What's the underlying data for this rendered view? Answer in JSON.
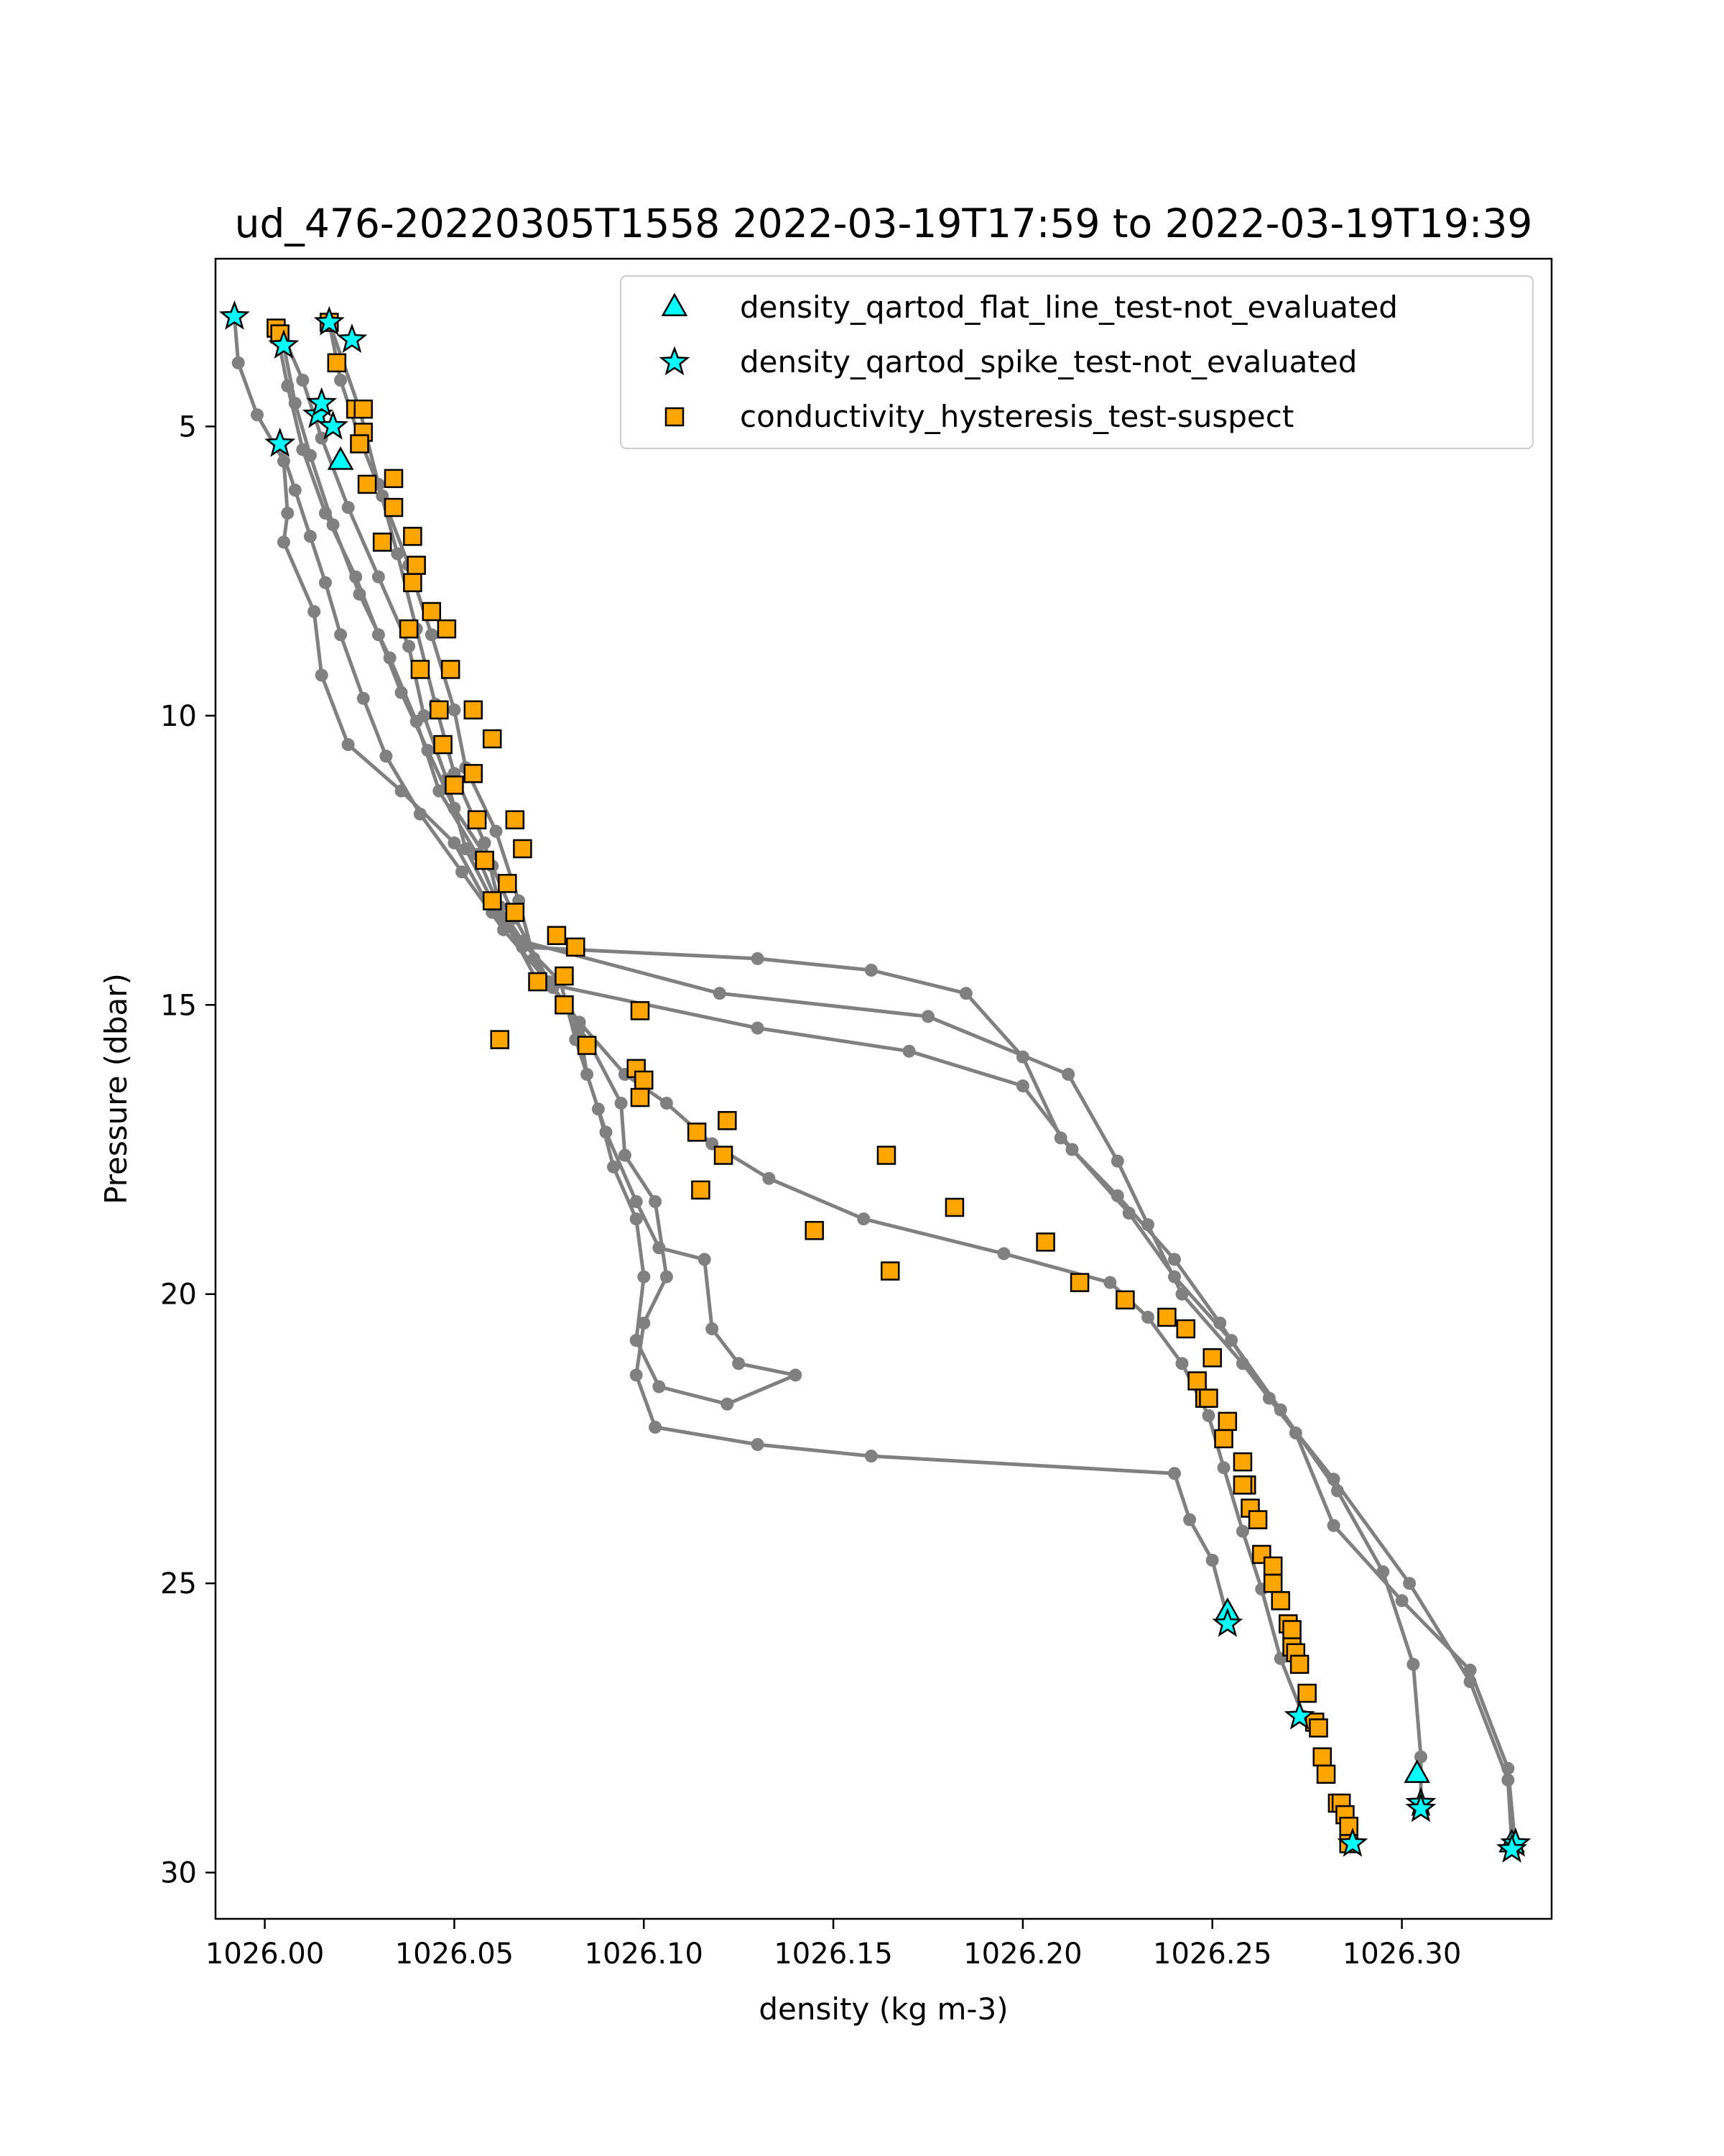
{
  "chart_data": {
    "type": "scatter",
    "title": "ud_476-20220305T1558 2022-03-19T17:59 to 2022-03-19T19:39",
    "xlabel": "density (kg m-3)",
    "ylabel": "Pressure (dbar)",
    "xlim": [
      1025.987,
      1026.3395
    ],
    "ylim": [
      30.8,
      2.1
    ],
    "y_inverted": true,
    "grid": false,
    "legend_position": "top-right",
    "xticks": [
      "1026.00",
      "1026.05",
      "1026.10",
      "1026.15",
      "1026.20",
      "1026.25",
      "1026.30"
    ],
    "xtick_values": [
      1026.0,
      1026.05,
      1026.1,
      1026.15,
      1026.2,
      1026.25,
      1026.3
    ],
    "yticks": [
      "5",
      "10",
      "15",
      "20",
      "25",
      "30"
    ],
    "ytick_values": [
      5,
      10,
      15,
      20,
      25,
      30
    ],
    "profile_line_color": "#808080",
    "series": [
      {
        "type": "line",
        "color": "#808080",
        "points": [
          [
            1026.017,
            3.2
          ],
          [
            1026.025,
            4.7
          ],
          [
            1026.03,
            6.0
          ],
          [
            1026.035,
            7.2
          ],
          [
            1026.04,
            8.5
          ],
          [
            1026.045,
            9.8
          ],
          [
            1026.05,
            11.0
          ],
          [
            1026.058,
            12.2
          ],
          [
            1026.062,
            13.3
          ],
          [
            1026.068,
            13.9
          ],
          [
            1026.12,
            14.8
          ],
          [
            1026.175,
            15.2
          ],
          [
            1026.212,
            16.2
          ],
          [
            1026.225,
            17.7
          ],
          [
            1026.233,
            18.8
          ],
          [
            1026.242,
            20.0
          ],
          [
            1026.258,
            21.2
          ],
          [
            1026.272,
            22.4
          ],
          [
            1026.282,
            24.0
          ],
          [
            1026.3,
            25.3
          ],
          [
            1026.318,
            26.5
          ],
          [
            1026.328,
            28.2
          ],
          [
            1026.33,
            29.6
          ]
        ]
      },
      {
        "type": "line",
        "color": "#808080",
        "points": [
          [
            1026.004,
            3.3
          ],
          [
            1026.01,
            4.2
          ],
          [
            1026.015,
            5.2
          ],
          [
            1026.022,
            6.4
          ],
          [
            1026.03,
            7.6
          ],
          [
            1026.038,
            8.8
          ],
          [
            1026.042,
            10.0
          ],
          [
            1026.048,
            11.1
          ],
          [
            1026.053,
            12.3
          ],
          [
            1026.06,
            13.2
          ],
          [
            1026.068,
            14.0
          ],
          [
            1026.13,
            14.2
          ],
          [
            1026.16,
            14.4
          ],
          [
            1026.185,
            14.8
          ],
          [
            1026.2,
            15.9
          ],
          [
            1026.21,
            17.3
          ],
          [
            1026.225,
            18.3
          ],
          [
            1026.24,
            19.4
          ],
          [
            1026.252,
            20.5
          ],
          [
            1026.265,
            21.8
          ],
          [
            1026.282,
            23.2
          ],
          [
            1026.302,
            25.0
          ],
          [
            1026.318,
            26.7
          ],
          [
            1026.328,
            28.4
          ],
          [
            1026.329,
            29.5
          ]
        ]
      },
      {
        "type": "line",
        "color": "#808080",
        "points": [
          [
            1026.005,
            3.6
          ],
          [
            1026.008,
            4.6
          ],
          [
            1026.012,
            5.5
          ],
          [
            1026.018,
            6.7
          ],
          [
            1026.025,
            7.9
          ],
          [
            1026.033,
            9.0
          ],
          [
            1026.04,
            10.1
          ],
          [
            1026.046,
            11.3
          ],
          [
            1026.056,
            12.4
          ],
          [
            1026.063,
            13.5
          ],
          [
            1026.072,
            14.6
          ],
          [
            1026.13,
            15.4
          ],
          [
            1026.17,
            15.8
          ],
          [
            1026.2,
            16.4
          ],
          [
            1026.213,
            17.5
          ],
          [
            1026.228,
            18.6
          ],
          [
            1026.24,
            19.7
          ],
          [
            1026.255,
            20.8
          ],
          [
            1026.268,
            22.0
          ],
          [
            1026.283,
            23.4
          ],
          [
            1026.295,
            24.8
          ],
          [
            1026.303,
            26.4
          ],
          [
            1026.305,
            28.0
          ],
          [
            1026.305,
            28.9
          ]
        ]
      },
      {
        "type": "line",
        "color": "#808080",
        "points": [
          [
            1025.992,
            3.1
          ],
          [
            1025.993,
            3.9
          ],
          [
            1025.998,
            4.8
          ],
          [
            1026.005,
            5.6
          ],
          [
            1026.006,
            6.5
          ],
          [
            1026.005,
            7.0
          ],
          [
            1026.013,
            8.2
          ],
          [
            1026.015,
            9.3
          ],
          [
            1026.022,
            10.5
          ],
          [
            1026.036,
            11.3
          ],
          [
            1026.05,
            12.2
          ],
          [
            1026.06,
            13.4
          ],
          [
            1026.078,
            14.6
          ],
          [
            1026.082,
            15.6
          ],
          [
            1026.088,
            16.8
          ],
          [
            1026.092,
            17.8
          ],
          [
            1026.098,
            18.7
          ],
          [
            1026.1,
            19.7
          ],
          [
            1026.098,
            20.8
          ],
          [
            1026.104,
            21.6
          ],
          [
            1026.122,
            21.9
          ],
          [
            1026.14,
            21.4
          ],
          [
            1026.125,
            21.2
          ],
          [
            1026.118,
            20.6
          ],
          [
            1026.116,
            19.4
          ],
          [
            1026.104,
            19.2
          ],
          [
            1026.098,
            18.4
          ],
          [
            1026.09,
            17.2
          ],
          [
            1026.085,
            16.2
          ],
          [
            1026.083,
            15.4
          ],
          [
            1026.071,
            14.2
          ],
          [
            1026.067,
            13.2
          ],
          [
            1026.061,
            12.0
          ],
          [
            1026.053,
            10.9
          ],
          [
            1026.05,
            9.9
          ],
          [
            1026.044,
            8.6
          ],
          [
            1026.038,
            7.4
          ],
          [
            1026.031,
            6.2
          ],
          [
            1026.025,
            5.2
          ],
          [
            1026.02,
            4.2
          ],
          [
            1026.017,
            3.2
          ]
        ]
      },
      {
        "type": "line",
        "color": "#808080",
        "points": [
          [
            1026.004,
            5.3
          ],
          [
            1026.008,
            6.1
          ],
          [
            1026.012,
            6.9
          ],
          [
            1026.016,
            7.7
          ],
          [
            1026.02,
            8.6
          ],
          [
            1026.026,
            9.7
          ],
          [
            1026.032,
            10.7
          ],
          [
            1026.041,
            11.7
          ],
          [
            1026.052,
            12.7
          ],
          [
            1026.063,
            13.7
          ],
          [
            1026.076,
            14.7
          ],
          [
            1026.086,
            15.7
          ],
          [
            1026.094,
            16.7
          ],
          [
            1026.095,
            17.6
          ],
          [
            1026.103,
            18.4
          ],
          [
            1026.106,
            19.7
          ],
          [
            1026.1,
            20.5
          ],
          [
            1026.098,
            21.4
          ],
          [
            1026.103,
            22.3
          ],
          [
            1026.13,
            22.6
          ],
          [
            1026.16,
            22.8
          ],
          [
            1026.24,
            23.1
          ],
          [
            1026.244,
            23.9
          ],
          [
            1026.25,
            24.6
          ],
          [
            1026.254,
            25.6
          ]
        ]
      },
      {
        "type": "line",
        "color": "#808080",
        "points": [
          [
            1026.003,
            3.3
          ],
          [
            1026.006,
            4.3
          ],
          [
            1026.01,
            5.4
          ],
          [
            1026.016,
            6.5
          ],
          [
            1026.024,
            7.6
          ],
          [
            1026.03,
            8.6
          ],
          [
            1026.036,
            9.6
          ],
          [
            1026.043,
            10.6
          ],
          [
            1026.05,
            11.6
          ],
          [
            1026.06,
            12.6
          ],
          [
            1026.066,
            13.5
          ],
          [
            1026.075,
            14.6
          ],
          [
            1026.083,
            15.3
          ],
          [
            1026.095,
            16.2
          ],
          [
            1026.106,
            16.7
          ],
          [
            1026.118,
            17.4
          ],
          [
            1026.133,
            18.0
          ],
          [
            1026.158,
            18.7
          ],
          [
            1026.195,
            19.3
          ],
          [
            1026.223,
            19.8
          ],
          [
            1026.233,
            20.4
          ],
          [
            1026.242,
            21.2
          ],
          [
            1026.249,
            22.1
          ],
          [
            1026.253,
            23.0
          ],
          [
            1026.258,
            24.1
          ],
          [
            1026.263,
            25.1
          ],
          [
            1026.268,
            26.3
          ],
          [
            1026.274,
            27.3
          ]
        ]
      }
    ],
    "legend": [
      {
        "label": "density_qartod_flat_line_test-not_evaluated",
        "marker": "triangle",
        "color": "#00ffff",
        "points": [
          [
            1026.02,
            5.6
          ],
          [
            1026.254,
            25.5
          ],
          [
            1026.304,
            28.3
          ],
          [
            1026.329,
            29.5
          ]
        ]
      },
      {
        "label": "density_qartod_spike_test-not_evaluated",
        "marker": "star",
        "color": "#00ffff",
        "points": [
          [
            1025.992,
            3.1
          ],
          [
            1026.005,
            3.6
          ],
          [
            1026.004,
            5.3
          ],
          [
            1026.014,
            4.8
          ],
          [
            1026.015,
            4.6
          ],
          [
            1026.018,
            5.0
          ],
          [
            1026.023,
            3.5
          ],
          [
            1026.017,
            3.2
          ],
          [
            1026.254,
            25.7
          ],
          [
            1026.273,
            27.3
          ],
          [
            1026.305,
            28.8
          ],
          [
            1026.305,
            28.9
          ],
          [
            1026.33,
            29.5
          ],
          [
            1026.329,
            29.6
          ],
          [
            1026.287,
            29.5
          ]
        ]
      },
      {
        "label": "conductivity_hysteresis_test-suspect",
        "marker": "square",
        "color": "#ffa500",
        "points": [
          [
            1026.003,
            3.3
          ],
          [
            1026.004,
            3.4
          ],
          [
            1026.017,
            3.2
          ],
          [
            1026.019,
            3.9
          ],
          [
            1026.024,
            4.7
          ],
          [
            1026.026,
            4.7
          ],
          [
            1026.026,
            5.1
          ],
          [
            1026.025,
            5.3
          ],
          [
            1026.027,
            6.0
          ],
          [
            1026.034,
            5.9
          ],
          [
            1026.034,
            6.4
          ],
          [
            1026.039,
            6.9
          ],
          [
            1026.031,
            7.0
          ],
          [
            1026.04,
            7.4
          ],
          [
            1026.039,
            7.7
          ],
          [
            1026.044,
            8.2
          ],
          [
            1026.038,
            8.5
          ],
          [
            1026.048,
            8.5
          ],
          [
            1026.041,
            9.2
          ],
          [
            1026.049,
            9.2
          ],
          [
            1026.046,
            9.9
          ],
          [
            1026.055,
            9.9
          ],
          [
            1026.047,
            10.5
          ],
          [
            1026.06,
            10.4
          ],
          [
            1026.055,
            11.0
          ],
          [
            1026.05,
            11.2
          ],
          [
            1026.066,
            11.8
          ],
          [
            1026.056,
            11.8
          ],
          [
            1026.068,
            12.3
          ],
          [
            1026.058,
            12.5
          ],
          [
            1026.064,
            12.9
          ],
          [
            1026.06,
            13.2
          ],
          [
            1026.066,
            13.4
          ],
          [
            1026.077,
            13.8
          ],
          [
            1026.082,
            14.0
          ],
          [
            1026.079,
            14.5
          ],
          [
            1026.072,
            14.6
          ],
          [
            1026.079,
            15.0
          ],
          [
            1026.099,
            15.1
          ],
          [
            1026.062,
            15.6
          ],
          [
            1026.085,
            15.7
          ],
          [
            1026.098,
            16.1
          ],
          [
            1026.1,
            16.3
          ],
          [
            1026.099,
            16.6
          ],
          [
            1026.122,
            17.0
          ],
          [
            1026.114,
            17.2
          ],
          [
            1026.121,
            17.6
          ],
          [
            1026.164,
            17.6
          ],
          [
            1026.115,
            18.2
          ],
          [
            1026.182,
            18.5
          ],
          [
            1026.145,
            18.9
          ],
          [
            1026.206,
            19.1
          ],
          [
            1026.165,
            19.6
          ],
          [
            1026.215,
            19.8
          ],
          [
            1026.227,
            20.1
          ],
          [
            1026.238,
            20.4
          ],
          [
            1026.243,
            20.6
          ],
          [
            1026.25,
            21.1
          ],
          [
            1026.246,
            21.5
          ],
          [
            1026.248,
            21.8
          ],
          [
            1026.249,
            21.8
          ],
          [
            1026.254,
            22.2
          ],
          [
            1026.253,
            22.5
          ],
          [
            1026.258,
            22.9
          ],
          [
            1026.259,
            23.3
          ],
          [
            1026.258,
            23.3
          ],
          [
            1026.26,
            23.7
          ],
          [
            1026.262,
            23.9
          ],
          [
            1026.263,
            24.5
          ],
          [
            1026.266,
            24.7
          ],
          [
            1026.266,
            25.0
          ],
          [
            1026.268,
            25.3
          ],
          [
            1026.27,
            25.7
          ],
          [
            1026.271,
            25.8
          ],
          [
            1026.271,
            26.1
          ],
          [
            1026.272,
            26.2
          ],
          [
            1026.273,
            26.4
          ],
          [
            1026.275,
            26.9
          ],
          [
            1026.277,
            27.4
          ],
          [
            1026.278,
            27.5
          ],
          [
            1026.279,
            28.0
          ],
          [
            1026.28,
            28.3
          ],
          [
            1026.283,
            28.8
          ],
          [
            1026.284,
            28.8
          ],
          [
            1026.285,
            29.0
          ],
          [
            1026.286,
            29.2
          ],
          [
            1026.286,
            29.5
          ]
        ]
      }
    ]
  }
}
